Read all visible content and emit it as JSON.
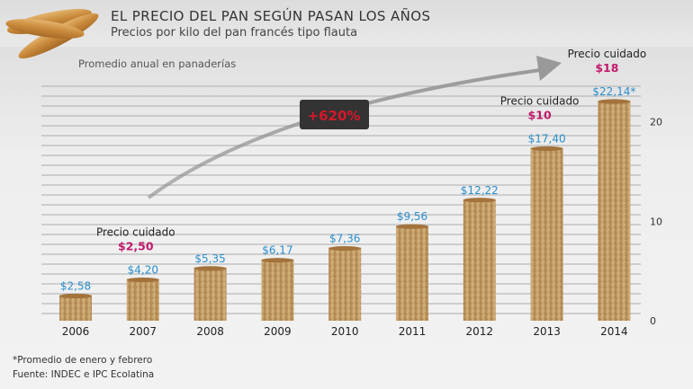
{
  "header": {
    "title": "EL PRECIO DEL PAN SEGÚN PASAN LOS AÑOS",
    "subtitle": "Precios por kilo del pan francés tipo flauta"
  },
  "note": "Promedio anual en panaderías",
  "footer": {
    "line1": "*Promedio de enero y febrero",
    "line2": "Fuente: INDEC e IPC Ecolatina"
  },
  "colors": {
    "value_label": "#2a8fce",
    "precio_cuidado_price": "#c2186b",
    "badge_bg": "#333333",
    "badge_text": "#d6182a",
    "bar_bread": "#c9a46b",
    "arrow": "#9a9a9a"
  },
  "chart_data": {
    "type": "bar",
    "categories": [
      "2006",
      "2007",
      "2008",
      "2009",
      "2010",
      "2011",
      "2012",
      "2013",
      "2014"
    ],
    "values": [
      2.58,
      4.2,
      5.35,
      6.17,
      7.36,
      9.56,
      12.22,
      17.4,
      22.14
    ],
    "value_labels": [
      "$2,58",
      "$4,20",
      "$5,35",
      "$6,17",
      "$7,36",
      "$9,56",
      "$12,22",
      "$17,40",
      "$22,14*"
    ],
    "y_ticks": [
      "0",
      "10",
      "20"
    ],
    "y_tick_values": [
      0,
      10,
      20
    ],
    "ylim": [
      0,
      22.5
    ],
    "grid": true,
    "y_axis_position": "right",
    "annotations": [
      {
        "category": "2007",
        "label": "Precio cuidado",
        "price": "$2,50",
        "value": 2.5
      },
      {
        "category": "2013",
        "label": "Precio cuidado",
        "price": "$10",
        "value": 10
      },
      {
        "category": "2014",
        "label": "Precio cuidado",
        "price": "$18",
        "value": 18
      }
    ],
    "growth_badge": "+620%"
  }
}
